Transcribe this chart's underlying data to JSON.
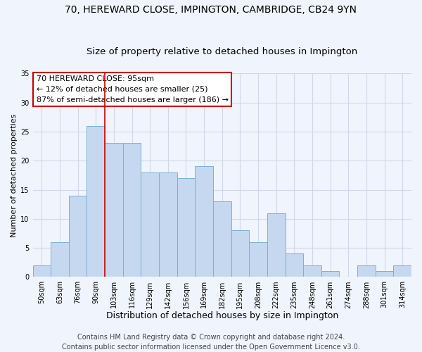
{
  "title": "70, HEREWARD CLOSE, IMPINGTON, CAMBRIDGE, CB24 9YN",
  "subtitle": "Size of property relative to detached houses in Impington",
  "xlabel": "Distribution of detached houses by size in Impington",
  "ylabel": "Number of detached properties",
  "bar_labels": [
    "50sqm",
    "63sqm",
    "76sqm",
    "90sqm",
    "103sqm",
    "116sqm",
    "129sqm",
    "142sqm",
    "156sqm",
    "169sqm",
    "182sqm",
    "195sqm",
    "208sqm",
    "222sqm",
    "235sqm",
    "248sqm",
    "261sqm",
    "274sqm",
    "288sqm",
    "301sqm",
    "314sqm"
  ],
  "bar_values": [
    2,
    6,
    14,
    26,
    23,
    23,
    18,
    18,
    17,
    19,
    13,
    8,
    6,
    11,
    4,
    2,
    1,
    0,
    2,
    1,
    2
  ],
  "bar_color": "#c5d8f0",
  "bar_edgecolor": "#7bafd4",
  "grid_color": "#d0d8e8",
  "background_color": "#f0f4fc",
  "vline_x_index": 3.5,
  "vline_color": "#cc0000",
  "annotation_line1": "70 HEREWARD CLOSE: 95sqm",
  "annotation_line2": "← 12% of detached houses are smaller (25)",
  "annotation_line3": "87% of semi-detached houses are larger (186) →",
  "annotation_box_edgecolor": "#cc0000",
  "ylim": [
    0,
    35
  ],
  "yticks": [
    0,
    5,
    10,
    15,
    20,
    25,
    30,
    35
  ],
  "footer_line1": "Contains HM Land Registry data © Crown copyright and database right 2024.",
  "footer_line2": "Contains public sector information licensed under the Open Government Licence v3.0.",
  "title_fontsize": 10,
  "subtitle_fontsize": 9.5,
  "xlabel_fontsize": 9,
  "ylabel_fontsize": 8,
  "tick_fontsize": 7,
  "annotation_fontsize": 8,
  "footer_fontsize": 7
}
